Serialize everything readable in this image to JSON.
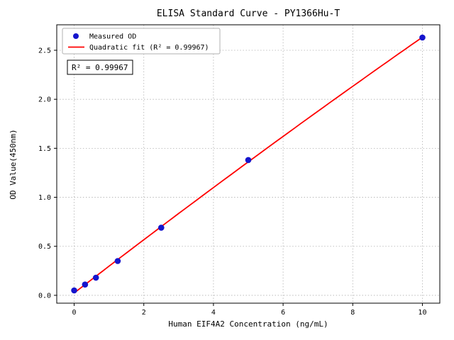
{
  "chart_data": {
    "type": "scatter",
    "title": "ELISA Standard Curve - PY1366Hu-T",
    "xlabel": "Human EIF4A2 Concentration (ng/mL)",
    "ylabel": "OD Value(450nm)",
    "xlim": [
      -0.5,
      10.5
    ],
    "ylim": [
      -0.08,
      2.76
    ],
    "grid": true,
    "legend_position": "upper left",
    "x_ticks": {
      "values": [
        0,
        2,
        4,
        6,
        8,
        10
      ],
      "labels": [
        "0",
        "2",
        "4",
        "6",
        "8",
        "10"
      ]
    },
    "y_ticks": {
      "values": [
        0,
        0.5,
        1.0,
        1.5,
        2.0,
        2.5
      ],
      "labels": [
        "0.0",
        "0.5",
        "1.0",
        "1.5",
        "2.0",
        "2.5"
      ]
    },
    "series": [
      {
        "name": "Measured OD",
        "type": "scatter",
        "color": "#1515cd",
        "x": [
          0,
          0.3125,
          0.625,
          1.25,
          2.5,
          5,
          10
        ],
        "y": [
          0.05,
          0.11,
          0.18,
          0.35,
          0.69,
          1.38,
          2.63
        ]
      },
      {
        "name": "Quadratic fit (R² = 0.99967)",
        "type": "line",
        "fit": "quadratic",
        "color": "#ff0000"
      }
    ],
    "annotation": "R² = 0.99967",
    "r_squared": 0.99967
  }
}
